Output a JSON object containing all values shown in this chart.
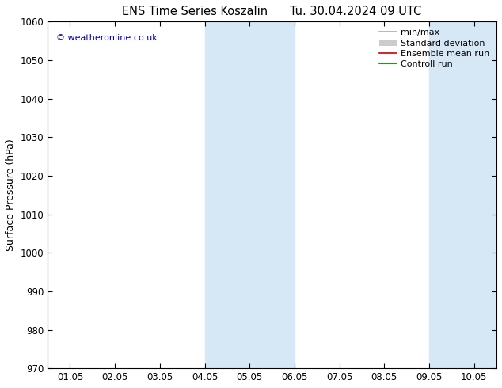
{
  "title": "ENS Time Series Koszalin      Tu. 30.04.2024 09 UTC",
  "ylabel": "Surface Pressure (hPa)",
  "ylim": [
    970,
    1060
  ],
  "yticks": [
    970,
    980,
    990,
    1000,
    1010,
    1020,
    1030,
    1040,
    1050,
    1060
  ],
  "x_labels": [
    "01.05",
    "02.05",
    "03.05",
    "04.05",
    "05.05",
    "06.05",
    "07.05",
    "08.05",
    "09.05",
    "10.05"
  ],
  "x_positions": [
    0,
    1,
    2,
    3,
    4,
    5,
    6,
    7,
    8,
    9
  ],
  "xlim": [
    -0.5,
    9.5
  ],
  "shade_bands": [
    {
      "xmin": 3.0,
      "xmax": 4.0
    },
    {
      "xmin": 4.0,
      "xmax": 5.0
    },
    {
      "xmin": 8.0,
      "xmax": 9.0
    },
    {
      "xmin": 9.0,
      "xmax": 9.5
    }
  ],
  "shade_color": "#d6e8f5",
  "watermark": "© weatheronline.co.uk",
  "watermark_color": "#0000bb",
  "legend_entries": [
    {
      "label": "min/max",
      "color": "#aaaaaa",
      "lw": 1.2,
      "ls": "-",
      "type": "line"
    },
    {
      "label": "Standard deviation",
      "color": "#cccccc",
      "lw": 8,
      "ls": "-",
      "type": "band"
    },
    {
      "label": "Ensemble mean run",
      "color": "#cc0000",
      "lw": 1.2,
      "ls": "-",
      "type": "line"
    },
    {
      "label": "Controll run",
      "color": "#007700",
      "lw": 1.2,
      "ls": "-",
      "type": "line"
    }
  ],
  "bg_color": "#ffffff",
  "title_fontsize": 10.5,
  "ylabel_fontsize": 9,
  "tick_fontsize": 8.5,
  "legend_fontsize": 8,
  "figsize": [
    6.34,
    4.9
  ],
  "dpi": 100
}
